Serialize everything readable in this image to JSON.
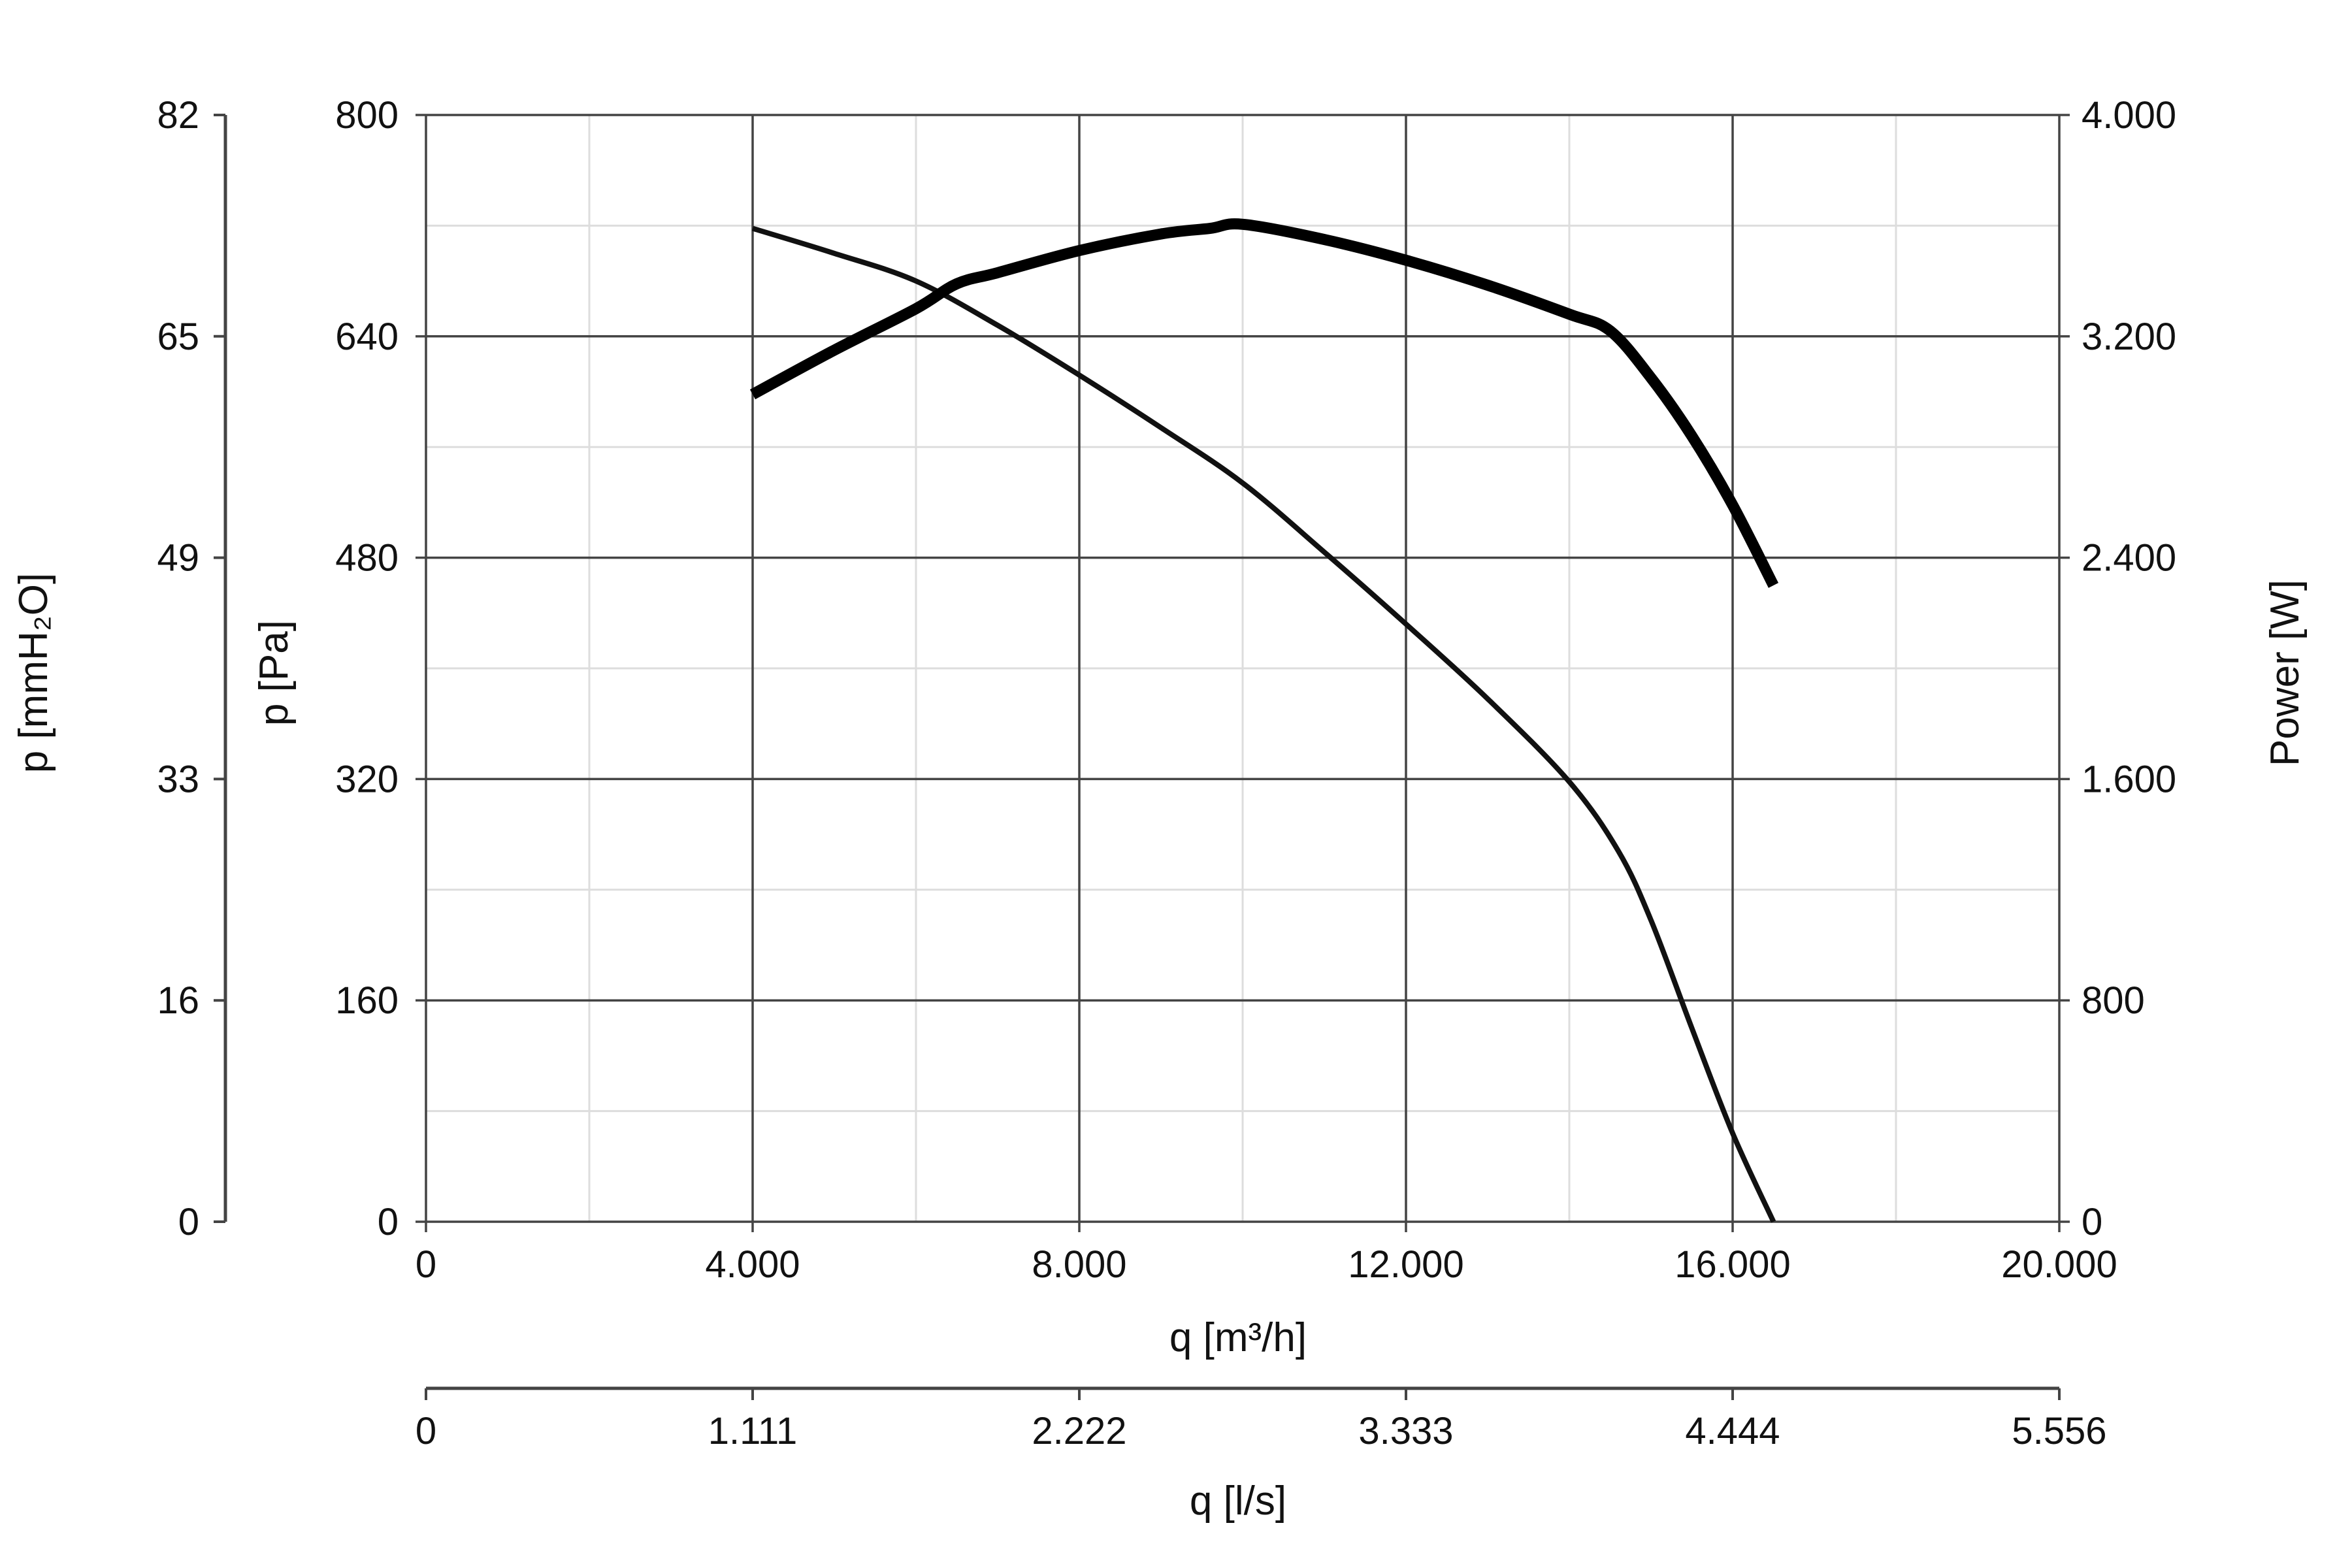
{
  "chart_data": {
    "type": "line",
    "grid": true,
    "x_axis": {
      "label": "q [m³/h]",
      "ticks": [
        0,
        4000,
        8000,
        12000,
        16000,
        20000
      ],
      "tick_labels": [
        "0",
        "4.000",
        "8.000",
        "12.000",
        "16.000",
        "20.000"
      ],
      "range": [
        0,
        20000
      ]
    },
    "x2_axis": {
      "label": "q [l/s]",
      "tick_labels": [
        "0",
        "1.111",
        "2.222",
        "3.333",
        "4.444",
        "5.556"
      ]
    },
    "y_axis": {
      "label": "p [Pa]",
      "ticks": [
        0,
        160,
        320,
        480,
        640,
        800
      ],
      "tick_labels": [
        "0",
        "160",
        "320",
        "480",
        "640",
        "800"
      ],
      "range": [
        0,
        800
      ]
    },
    "y_outer_axis": {
      "label": "p [mmH₂O]",
      "tick_labels": [
        "0",
        "16",
        "33",
        "49",
        "65",
        "82"
      ]
    },
    "y_right_axis": {
      "label": "Power [W]",
      "ticks": [
        0,
        800,
        1600,
        2400,
        3200,
        4000
      ],
      "tick_labels": [
        "0",
        "800",
        "1.600",
        "2.400",
        "3.200",
        "4.000"
      ],
      "range": [
        0,
        4000
      ]
    },
    "series": [
      {
        "axis": "pressure",
        "color": "#111111",
        "points": [
          [
            4000,
            718
          ],
          [
            5000,
            700
          ],
          [
            6000,
            680
          ],
          [
            7000,
            648
          ],
          [
            8000,
            612
          ],
          [
            9000,
            574
          ],
          [
            10000,
            534
          ],
          [
            11000,
            484
          ],
          [
            12000,
            432
          ],
          [
            13000,
            378
          ],
          [
            14000,
            318
          ],
          [
            14600,
            268
          ],
          [
            15000,
            218
          ],
          [
            15500,
            140
          ],
          [
            16000,
            64
          ],
          [
            16500,
            0
          ]
        ]
      },
      {
        "axis": "power",
        "color": "#000000",
        "points": [
          [
            4000,
            2990
          ],
          [
            5000,
            3150
          ],
          [
            6000,
            3300
          ],
          [
            6500,
            3390
          ],
          [
            7000,
            3430
          ],
          [
            8000,
            3510
          ],
          [
            9000,
            3570
          ],
          [
            9600,
            3590
          ],
          [
            10000,
            3605
          ],
          [
            11000,
            3550
          ],
          [
            12000,
            3475
          ],
          [
            13000,
            3385
          ],
          [
            14000,
            3280
          ],
          [
            14500,
            3220
          ],
          [
            15000,
            3050
          ],
          [
            15500,
            2840
          ],
          [
            16000,
            2590
          ],
          [
            16500,
            2300
          ]
        ]
      }
    ]
  }
}
